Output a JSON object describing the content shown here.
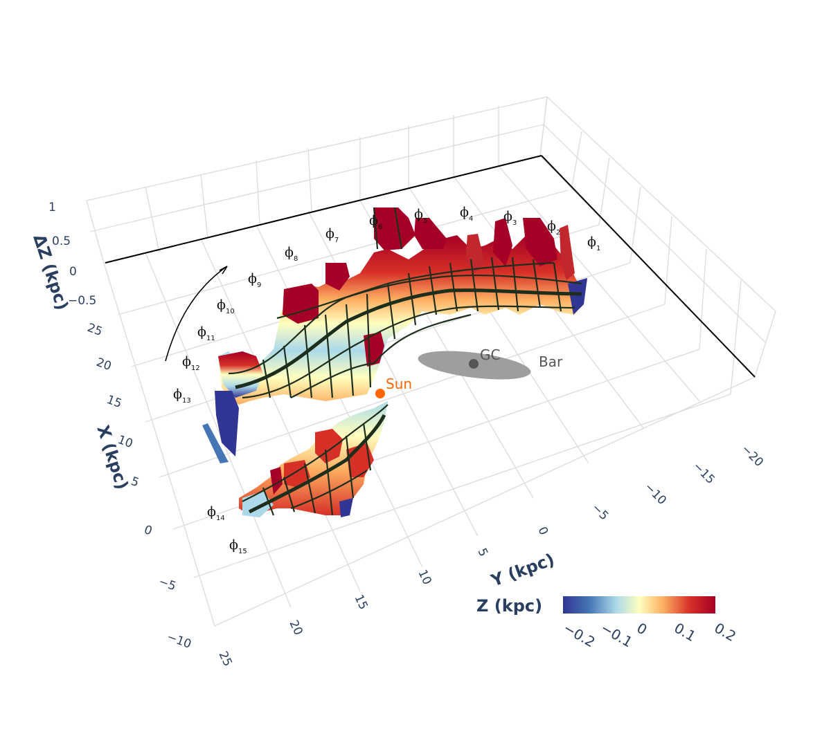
{
  "chart_data": {
    "type": "surface3d",
    "colorbar": {
      "title": "Z (kpc)",
      "ticks": [
        "−0.2",
        "−0.1",
        "0",
        "0.1",
        "0.2"
      ],
      "range": [
        -0.2,
        0.2
      ],
      "colors": [
        "#313695",
        "#4575b4",
        "#abd9e9",
        "#ffffbf",
        "#fdae61",
        "#d73027",
        "#a50026"
      ]
    },
    "axes": {
      "x": {
        "title": "X (kpc)",
        "ticks": [
          "−10",
          "−5",
          "0",
          "5",
          "10",
          "15",
          "20",
          "25"
        ],
        "range": [
          -10,
          25
        ]
      },
      "y": {
        "title": "Y (kpc)",
        "ticks": [
          "25",
          "20",
          "15",
          "10",
          "5",
          "0",
          "−5",
          "−10",
          "−15",
          "−20"
        ],
        "range": [
          -20,
          25
        ]
      },
      "z": {
        "title": "ΔZ (kpc)",
        "ticks": [
          "1",
          "0.5",
          "0",
          "−0.5"
        ],
        "range": [
          -0.5,
          1
        ]
      }
    },
    "markers": {
      "sun": "Sun",
      "gc": "GC",
      "bar": "Bar"
    },
    "phi_labels": [
      {
        "sym": "ϕ",
        "sub": "1"
      },
      {
        "sym": "ϕ",
        "sub": "2"
      },
      {
        "sym": "ϕ",
        "sub": "3"
      },
      {
        "sym": "ϕ",
        "sub": "4"
      },
      {
        "sym": "ϕ",
        "sub": "5"
      },
      {
        "sym": "ϕ",
        "sub": "6"
      },
      {
        "sym": "ϕ",
        "sub": "7"
      },
      {
        "sym": "ϕ",
        "sub": "8"
      },
      {
        "sym": "ϕ",
        "sub": "9"
      },
      {
        "sym": "ϕ",
        "sub": "10"
      },
      {
        "sym": "ϕ",
        "sub": "11"
      },
      {
        "sym": "ϕ",
        "sub": "12"
      },
      {
        "sym": "ϕ",
        "sub": "13"
      },
      {
        "sym": "ϕ",
        "sub": "14"
      },
      {
        "sym": "ϕ",
        "sub": "15"
      }
    ],
    "colors": {
      "sun": "#ff6600",
      "gc": "#555555",
      "bar": "#999999",
      "mesh": "#1d2e1d",
      "grid": "#dddddd",
      "text": "#2a3f5f"
    }
  }
}
